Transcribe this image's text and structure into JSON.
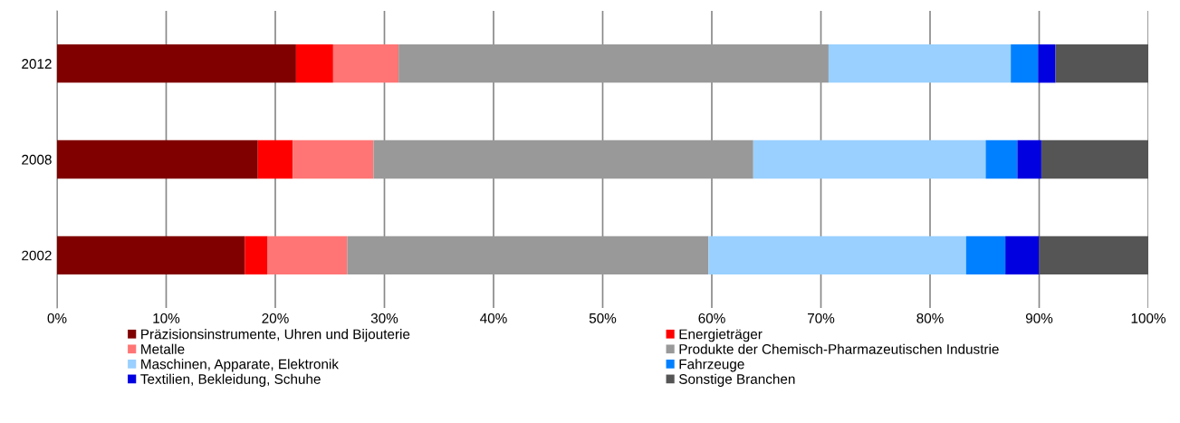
{
  "chart_data": {
    "type": "bar",
    "orientation": "horizontal",
    "stacked": true,
    "categories": [
      "2012",
      "2008",
      "2002"
    ],
    "series": [
      {
        "name": "Präzisionsinstrumente, Uhren und Bijouterie",
        "color": "#800000",
        "values": [
          21.9,
          18.4,
          17.2
        ]
      },
      {
        "name": "Energieträger",
        "color": "#ff0000",
        "values": [
          3.4,
          3.2,
          2.1
        ]
      },
      {
        "name": "Metalle",
        "color": "#ff7575",
        "values": [
          6.0,
          7.4,
          7.3
        ]
      },
      {
        "name": "Produkte der Chemisch-Pharmazeutischen Industrie",
        "color": "#999999",
        "values": [
          39.4,
          34.8,
          33.1
        ]
      },
      {
        "name": "Maschinen, Apparate, Elektronik",
        "color": "#99d0ff",
        "values": [
          16.7,
          21.3,
          23.6
        ]
      },
      {
        "name": "Fahrzeuge",
        "color": "#0080ff",
        "values": [
          2.5,
          2.9,
          3.6
        ]
      },
      {
        "name": "Textilien, Bekleidung, Schuhe",
        "color": "#0000e0",
        "values": [
          1.6,
          2.2,
          3.1
        ]
      },
      {
        "name": "Sonstige Branchen",
        "color": "#555555",
        "values": [
          8.5,
          9.8,
          10.0
        ]
      }
    ],
    "xlim": [
      0,
      100
    ],
    "xticks": [
      {
        "value": 0,
        "label": "0%"
      },
      {
        "value": 10,
        "label": "10%"
      },
      {
        "value": 20,
        "label": "20%"
      },
      {
        "value": 30,
        "label": "30%"
      },
      {
        "value": 40,
        "label": "40%"
      },
      {
        "value": 50,
        "label": "50%"
      },
      {
        "value": 60,
        "label": "60%"
      },
      {
        "value": 70,
        "label": "70%"
      },
      {
        "value": 80,
        "label": "80%"
      },
      {
        "value": 90,
        "label": "90%"
      },
      {
        "value": 100,
        "label": "100%"
      }
    ],
    "grid": "x",
    "legend": "bottom"
  }
}
